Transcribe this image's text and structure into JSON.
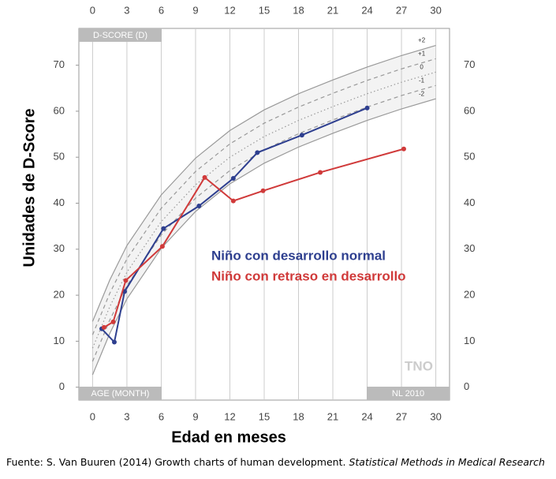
{
  "chart_data": {
    "type": "line",
    "x_label": "Edad en meses",
    "y_label": "Unidades de D-Score",
    "xlim": [
      -1.2,
      31.2
    ],
    "ylim": [
      -2.8,
      78
    ],
    "xticks": [
      0,
      3,
      6,
      9,
      12,
      15,
      18,
      21,
      24,
      27,
      30
    ],
    "yticks": [
      0,
      10,
      20,
      30,
      40,
      50,
      60,
      70
    ],
    "grid": "x",
    "box_labels": [
      "D-SCORE (D)",
      "AGE (MONTH)",
      "NL 2010"
    ],
    "logo": "TNO",
    "series": [
      {
        "name": "Niño con desarrollo normal",
        "color": "#2e3f8f",
        "x": [
          0.8,
          1.9,
          2.8,
          6.2,
          9.3,
          12.3,
          14.4,
          18.3,
          24
        ],
        "values": [
          12.7,
          9.8,
          20.8,
          34.5,
          39.4,
          45.4,
          51,
          54.8,
          60.7
        ]
      },
      {
        "name": "Niño con retraso en desarrollo",
        "color": "#d03a3a",
        "x": [
          1.0,
          1.8,
          2.9,
          6.1,
          9.8,
          12.3,
          14.9,
          19.9,
          27.2
        ],
        "values": [
          13,
          14.2,
          23.2,
          30.6,
          45.6,
          40.5,
          42.7,
          46.7,
          51.8
        ]
      }
    ],
    "reference_x": [
      0,
      1.5,
      3,
      6,
      9,
      12,
      15,
      18,
      21,
      24,
      27,
      30
    ],
    "reference_curves": [
      {
        "name": "+2",
        "style": "solid",
        "values": [
          14.3,
          23.3,
          30.8,
          41.8,
          49.8,
          55.8,
          60.3,
          63.8,
          66.8,
          69.6,
          72.1,
          74.3
        ]
      },
      {
        "name": "+1",
        "style": "dashed",
        "values": [
          11.4,
          20.4,
          27.9,
          38.9,
          46.9,
          52.9,
          57.4,
          60.9,
          63.9,
          66.7,
          69.2,
          71.4
        ]
      },
      {
        "name": "0",
        "style": "dotted",
        "values": [
          8.5,
          17.5,
          25,
          36,
          44,
          50,
          54.5,
          58,
          61,
          63.8,
          66.3,
          68.5
        ]
      },
      {
        "name": "-1",
        "style": "dashed",
        "values": [
          5.6,
          14.6,
          22.1,
          33.1,
          41.1,
          47.1,
          51.6,
          55.1,
          58.1,
          60.9,
          63.4,
          65.6
        ]
      },
      {
        "name": "-2",
        "style": "solid",
        "values": [
          2.7,
          11.7,
          19.2,
          30.2,
          38.2,
          44.2,
          48.7,
          52.2,
          55.2,
          58,
          60.5,
          62.7
        ]
      }
    ],
    "source": "Fuente: S. Van Buuren (2014) Growth charts of human development. ",
    "source_italic": "Statistical Methods in Medical Research"
  }
}
